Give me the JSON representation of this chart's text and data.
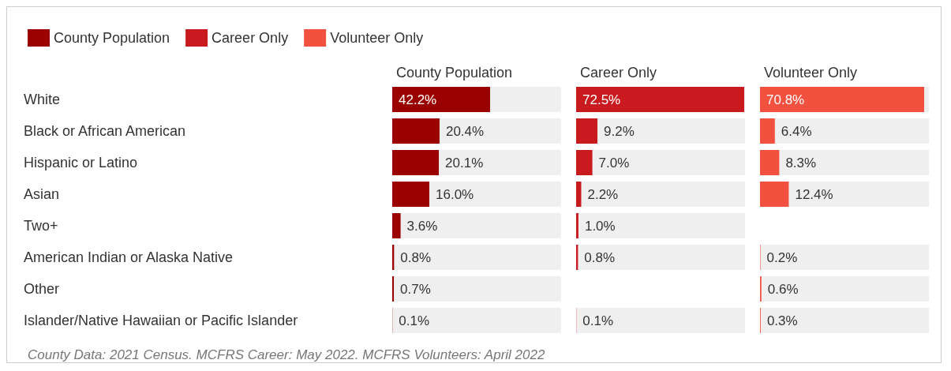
{
  "chart_data": [
    {
      "type": "bar",
      "orientation": "horizontal",
      "legend": "top left",
      "tick_labels": "y",
      "grid": false,
      "categories": [
        "White",
        "Black or African American",
        "Hispanic or Latino",
        "Asian",
        "Two+",
        "American Indian or Alaska Native",
        "Other",
        "Islander/Native Hawaiian or Pacific Islander"
      ],
      "title": "County Population",
      "series": [
        {
          "name": "County Population",
          "color": "#9b0000",
          "values": [
            42.2,
            20.4,
            20.1,
            16.0,
            3.6,
            0.8,
            0.7,
            0.1
          ],
          "value_labels": [
            "42.2%",
            "20.4%",
            "20.1%",
            "16.0%",
            "3.6%",
            "0.8%",
            "0.7%",
            "0.1%"
          ]
        }
      ],
      "annotations": [
        "County Data: 2021 Census. MCFRS Career: May 2022. MCFRS Volunteers: April 2022"
      ]
    },
    {
      "type": "bar",
      "orientation": "horizontal",
      "legend": "top left",
      "tick_labels": false,
      "grid": false,
      "categories": [
        null,
        null,
        null,
        null,
        null,
        null,
        null,
        null
      ],
      "title": "Career Only",
      "series": [
        {
          "name": "Career Only",
          "color": "#c91b1f",
          "values": [
            72.5,
            9.2,
            7.0,
            2.2,
            1.0,
            0.8,
            null,
            0.1
          ],
          "value_labels": [
            "72.5%",
            "9.2%",
            "7.0%",
            "2.2%",
            "1.0%",
            "0.8%",
            null,
            "0.1%"
          ]
        }
      ]
    },
    {
      "type": "bar",
      "orientation": "horizontal",
      "legend": "top left",
      "tick_labels": false,
      "grid": false,
      "categories": [
        null,
        null,
        null,
        null,
        null,
        null,
        null,
        null
      ],
      "title": "Volunteer Only",
      "series": [
        {
          "name": "Volunteer Only",
          "color": "#f2513f",
          "values": [
            70.8,
            6.4,
            8.3,
            12.4,
            null,
            0.2,
            0.6,
            0.3
          ],
          "value_labels": [
            "70.8%",
            "6.4%",
            "8.3%",
            "12.4%",
            null,
            "0.2%",
            "0.6%",
            "0.3%"
          ]
        }
      ]
    }
  ]
}
